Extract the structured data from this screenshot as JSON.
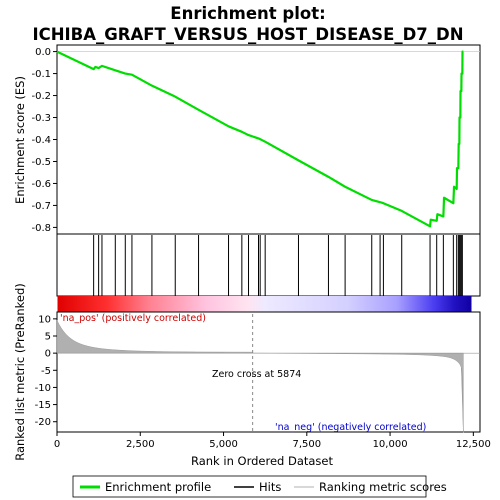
{
  "chart_data": {
    "type": "line",
    "title_line1": "Enrichment plot:",
    "title_line2": "ICHIBA_GRAFT_VERSUS_HOST_DISEASE_D7_DN",
    "ylabel_top": "Enrichment score (ES)",
    "ylabel_bottom": "Ranked list metric (PreRanked)",
    "xlabel": "Rank in Ordered Dataset",
    "es_yticks": [
      "0.0",
      "-0.1",
      "-0.2",
      "-0.3",
      "-0.4",
      "-0.5",
      "-0.6",
      "-0.7",
      "-0.8"
    ],
    "metric_yticks": [
      "10",
      "5",
      "0",
      "-5",
      "-10",
      "-15",
      "-20"
    ],
    "xticks": [
      "0",
      "2,500",
      "5,000",
      "7,500",
      "10,000",
      "12,500"
    ],
    "xlim": [
      0,
      12700
    ],
    "es_ylim": [
      -0.83,
      0.03
    ],
    "metric_ylim": [
      -23,
      12
    ],
    "label_pos": "'na_pos' (positively correlated)",
    "label_neg": "'na_neg' (negatively correlated)",
    "zero_cross_label": "Zero cross at 5874",
    "zero_cross": 5874,
    "n_genes": 12200,
    "hits": [
      1100,
      1250,
      1350,
      1750,
      2050,
      2250,
      2850,
      3550,
      4250,
      5150,
      5550,
      5750,
      6050,
      6100,
      6250,
      7250,
      8150,
      8650,
      9450,
      9700,
      9800,
      10350,
      11200,
      11400,
      11600,
      11900,
      12000,
      12050,
      12080,
      12110,
      12140,
      12170
    ],
    "es_points": [
      [
        0,
        0.0
      ],
      [
        1100,
        -0.08
      ],
      [
        1150,
        -0.07
      ],
      [
        1250,
        -0.075
      ],
      [
        1350,
        -0.065
      ],
      [
        1750,
        -0.085
      ],
      [
        2050,
        -0.1
      ],
      [
        2250,
        -0.105
      ],
      [
        2850,
        -0.155
      ],
      [
        3550,
        -0.205
      ],
      [
        4250,
        -0.265
      ],
      [
        5150,
        -0.34
      ],
      [
        5550,
        -0.365
      ],
      [
        5750,
        -0.38
      ],
      [
        6050,
        -0.395
      ],
      [
        6250,
        -0.41
      ],
      [
        7250,
        -0.495
      ],
      [
        8150,
        -0.57
      ],
      [
        8650,
        -0.615
      ],
      [
        9450,
        -0.675
      ],
      [
        9700,
        -0.685
      ],
      [
        9800,
        -0.69
      ],
      [
        10350,
        -0.725
      ],
      [
        11200,
        -0.795
      ],
      [
        11220,
        -0.765
      ],
      [
        11400,
        -0.77
      ],
      [
        11420,
        -0.74
      ],
      [
        11600,
        -0.75
      ],
      [
        11620,
        -0.665
      ],
      [
        11900,
        -0.69
      ],
      [
        11920,
        -0.615
      ],
      [
        12000,
        -0.625
      ],
      [
        12010,
        -0.53
      ],
      [
        12050,
        -0.53
      ],
      [
        12060,
        -0.42
      ],
      [
        12080,
        -0.42
      ],
      [
        12085,
        -0.3
      ],
      [
        12110,
        -0.3
      ],
      [
        12115,
        -0.18
      ],
      [
        12140,
        -0.18
      ],
      [
        12145,
        -0.1
      ],
      [
        12170,
        -0.1
      ],
      [
        12175,
        0.0
      ],
      [
        12200,
        0.0
      ]
    ],
    "legend": [
      "Enrichment profile",
      "Hits",
      "Ranking metric scores"
    ],
    "colors": {
      "es_line": "#00dd00",
      "hits": "#000000",
      "metric_fill": "#b0b0b0",
      "zero_line": "#888888",
      "pos_band": "#ff0000",
      "neg_band": "#0000ff"
    }
  }
}
